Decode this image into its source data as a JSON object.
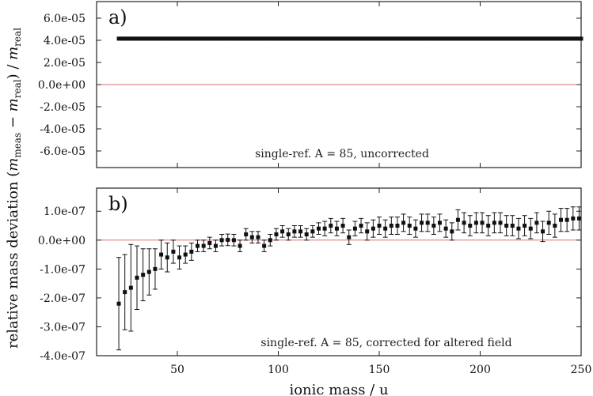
{
  "chart_data": [
    {
      "panel": "a)",
      "type": "scatter",
      "annotation": "single-ref. A = 85, uncorrected",
      "ylim": [
        -7.5e-05,
        7.5e-05
      ],
      "yticks": [
        "6.0e-05",
        "4.0e-05",
        "2.0e-05",
        "0.0e+00",
        "-2.0e-05",
        "-4.0e-05",
        "-6.0e-05"
      ],
      "ytick_values": [
        6e-05,
        4e-05,
        2e-05,
        0,
        -2e-05,
        -4e-05,
        -6e-05
      ],
      "reference_line": 0,
      "reference_line_color": "#d87070",
      "series": [
        {
          "x_start": 21,
          "x_end": 250,
          "x_step": 1,
          "y": 4.15e-05,
          "marker": "square",
          "color": "#111111"
        }
      ]
    },
    {
      "panel": "b)",
      "type": "scatter",
      "annotation": "single-ref. A = 85, corrected for altered field",
      "ylim": [
        -4e-07,
        1.8e-07
      ],
      "yticks": [
        "1.0e-07",
        "0.0e+00",
        "-1.0e-07",
        "-2.0e-07",
        "-3.0e-07",
        "-4.0e-07"
      ],
      "ytick_values": [
        1e-07,
        0,
        -1e-07,
        -2e-07,
        -3e-07,
        -4e-07
      ],
      "reference_line": 0,
      "reference_line_color": "#d87070",
      "series": [
        {
          "marker": "square",
          "color": "#111111",
          "x": [
            21,
            24,
            27,
            30,
            33,
            36,
            39,
            42,
            45,
            48,
            51,
            54,
            57,
            60,
            63,
            66,
            69,
            72,
            75,
            78,
            81,
            84,
            87,
            90,
            93,
            96,
            99,
            102,
            105,
            108,
            111,
            114,
            117,
            120,
            123,
            126,
            129,
            132,
            135,
            138,
            141,
            144,
            147,
            150,
            153,
            156,
            159,
            162,
            165,
            168,
            171,
            174,
            177,
            180,
            183,
            186,
            189,
            192,
            195,
            198,
            201,
            204,
            207,
            210,
            213,
            216,
            219,
            222,
            225,
            228,
            231,
            234,
            237,
            240,
            243,
            246,
            249
          ],
          "y": [
            -2.2e-07,
            -1.8e-07,
            -1.65e-07,
            -1.3e-07,
            -1.2e-07,
            -1.1e-07,
            -1e-07,
            -5e-08,
            -6e-08,
            -4e-08,
            -6e-08,
            -5e-08,
            -4e-08,
            -2e-08,
            -2e-08,
            -1e-08,
            -2e-08,
            0,
            1e-09,
            0,
            -2e-08,
            2e-08,
            1e-08,
            1e-08,
            -2e-08,
            0,
            2e-08,
            3e-08,
            2e-08,
            3e-08,
            3e-08,
            2e-08,
            3e-08,
            4e-08,
            4e-08,
            5e-08,
            4e-08,
            5e-08,
            1e-08,
            4e-08,
            5e-08,
            3e-08,
            4e-08,
            5e-08,
            4e-08,
            5e-08,
            5e-08,
            6e-08,
            5e-08,
            4e-08,
            6e-08,
            6e-08,
            5e-08,
            6e-08,
            4e-08,
            3e-08,
            7e-08,
            6e-08,
            5e-08,
            6e-08,
            6e-08,
            5e-08,
            6e-08,
            6e-08,
            5e-08,
            5e-08,
            4e-08,
            5e-08,
            4e-08,
            6e-08,
            3e-08,
            6e-08,
            5e-08,
            7e-08,
            7e-08,
            7.5e-08,
            7.5e-08
          ],
          "yerr": [
            1.6e-07,
            1.3e-07,
            1.5e-07,
            1.1e-07,
            9e-08,
            8e-08,
            7e-08,
            5e-08,
            5e-08,
            4e-08,
            4e-08,
            3e-08,
            3e-08,
            2e-08,
            2e-08,
            2e-08,
            2e-08,
            2e-08,
            2e-08,
            2e-08,
            2e-08,
            2e-08,
            2e-08,
            2e-08,
            2e-08,
            2e-08,
            2e-08,
            2e-08,
            2e-08,
            2e-08,
            2e-08,
            2e-08,
            2e-08,
            2e-08,
            2.5e-08,
            2.5e-08,
            2.5e-08,
            2.5e-08,
            2.5e-08,
            2.5e-08,
            2.5e-08,
            3e-08,
            3e-08,
            3e-08,
            3e-08,
            3e-08,
            3e-08,
            3e-08,
            3e-08,
            3e-08,
            3e-08,
            3e-08,
            3e-08,
            3e-08,
            3e-08,
            3e-08,
            3.5e-08,
            3.5e-08,
            3.5e-08,
            3.5e-08,
            3.5e-08,
            3.5e-08,
            3.5e-08,
            3.5e-08,
            3.5e-08,
            3.5e-08,
            3.5e-08,
            3.5e-08,
            3.5e-08,
            3.5e-08,
            3.5e-08,
            4e-08,
            4e-08,
            4e-08,
            4e-08,
            4e-08,
            4e-08
          ]
        }
      ]
    }
  ],
  "xaxis": {
    "label": "ionic mass / u",
    "xlim": [
      10,
      250
    ],
    "ticks": [
      50,
      100,
      150,
      200,
      250
    ]
  },
  "yaxis_label_plain": "relative mass deviation",
  "yaxis_label_math": "(m_meas − m_real)/m_real"
}
